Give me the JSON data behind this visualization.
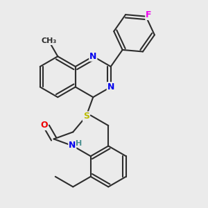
{
  "background_color": "#ebebeb",
  "bond_color": "#2d2d2d",
  "bond_width": 1.5,
  "atom_colors": {
    "N": "#0000ee",
    "O": "#ee0000",
    "S": "#bbbb00",
    "F": "#ee00ee",
    "C": "#2d2d2d"
  },
  "font_size": 8.5,
  "fig_width": 3.0,
  "fig_height": 3.0,
  "dpi": 100,
  "BL": 0.3
}
